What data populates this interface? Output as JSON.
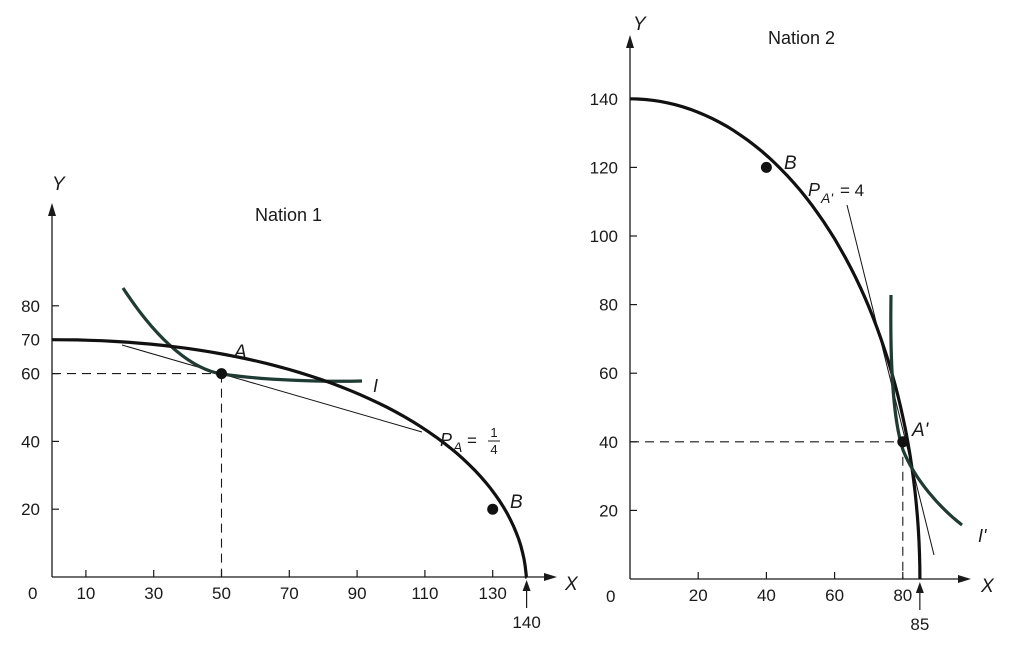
{
  "nation1": {
    "title": "Nation 1",
    "x_axis_label": "X",
    "y_axis_label": "Y",
    "origin_label": "0",
    "x_ticks": [
      {
        "value": 10,
        "label": "10"
      },
      {
        "value": 30,
        "label": "30"
      },
      {
        "value": 50,
        "label": "50"
      },
      {
        "value": 70,
        "label": "70"
      },
      {
        "value": 90,
        "label": "90"
      },
      {
        "value": 110,
        "label": "110"
      },
      {
        "value": 130,
        "label": "130"
      }
    ],
    "y_ticks": [
      {
        "value": 20,
        "label": "20"
      },
      {
        "value": 40,
        "label": "40"
      },
      {
        "value": 60,
        "label": "60"
      },
      {
        "value": 70,
        "label": "70"
      },
      {
        "value": 80,
        "label": "80"
      }
    ],
    "x_intercept": {
      "value": 140,
      "label": "140"
    },
    "y_intercept": 70,
    "point_a": {
      "label": "A",
      "x": 50,
      "y": 60
    },
    "point_b": {
      "label": "B",
      "x": 130,
      "y": 20
    },
    "indifference_label": "I",
    "price_label": {
      "symbol": "P",
      "subscript": "A",
      "equals": "=",
      "numerator": "1",
      "denominator": "4"
    }
  },
  "nation2": {
    "title": "Nation 2",
    "x_axis_label": "X",
    "y_axis_label": "Y",
    "origin_label": "0",
    "x_ticks": [
      {
        "value": 20,
        "label": "20"
      },
      {
        "value": 40,
        "label": "40"
      },
      {
        "value": 60,
        "label": "60"
      },
      {
        "value": 80,
        "label": "80"
      }
    ],
    "y_ticks": [
      {
        "value": 20,
        "label": "20"
      },
      {
        "value": 40,
        "label": "40"
      },
      {
        "value": 60,
        "label": "60"
      },
      {
        "value": 80,
        "label": "80"
      },
      {
        "value": 100,
        "label": "100"
      },
      {
        "value": 120,
        "label": "120"
      },
      {
        "value": 140,
        "label": "140"
      }
    ],
    "x_intercept": {
      "value": 85,
      "label": "85"
    },
    "y_intercept": 140,
    "point_a": {
      "label": "A'",
      "x": 80,
      "y": 40
    },
    "point_b": {
      "label": "B",
      "x": 40,
      "y": 120
    },
    "indifference_label": "I'",
    "price_label": {
      "symbol": "P",
      "subscript": "A'",
      "equals": "= 4"
    }
  }
}
